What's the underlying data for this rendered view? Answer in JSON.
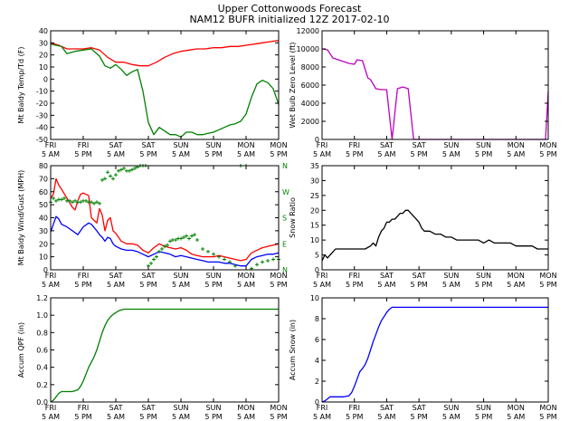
{
  "figure": {
    "title_line1": "Upper Cottonwoods Forecast",
    "title_line2": "NAM12 BUFR initialized 12Z 2017-02-10"
  },
  "chart_data": [
    {
      "id": "temp",
      "type": "line",
      "title": "",
      "ylabel": "Mt Baldy Temp/Td (F)",
      "xlim": [
        0,
        84
      ],
      "ylim": [
        -50,
        40
      ],
      "yticks": [
        -50,
        -40,
        -30,
        -20,
        -10,
        0,
        10,
        20,
        30,
        40
      ],
      "xtick_labels": [
        "FRI 5 AM",
        "FRI 5 PM",
        "SAT 5 AM",
        "SAT 5 PM",
        "SUN 5 AM",
        "SUN 5 PM",
        "MON 5 AM",
        "MON 5 PM"
      ],
      "series": [
        {
          "name": "Temp",
          "color": "#ff0000",
          "x": [
            0,
            3,
            6,
            9,
            12,
            15,
            18,
            21,
            24,
            27,
            30,
            33,
            36,
            39,
            42,
            45,
            48,
            51,
            54,
            57,
            60,
            63,
            66,
            69,
            72,
            75,
            78,
            81,
            84
          ],
          "y": [
            30,
            28,
            25,
            25,
            25,
            26,
            24,
            18,
            14,
            14,
            12,
            11,
            11,
            14,
            18,
            21,
            23,
            24,
            25,
            25,
            26,
            26,
            27,
            27,
            28,
            29,
            30,
            31,
            32
          ]
        },
        {
          "name": "Dewpoint",
          "color": "#008000",
          "x": [
            0,
            2,
            4,
            6,
            9,
            12,
            15,
            18,
            20,
            22,
            24,
            26,
            28,
            30,
            32,
            34,
            36,
            38,
            40,
            42,
            44,
            46,
            48,
            50,
            52,
            54,
            56,
            58,
            60,
            62,
            64,
            66,
            68,
            70,
            72,
            74,
            76,
            78,
            80,
            82,
            84
          ],
          "y": [
            29,
            28,
            27,
            21,
            23,
            24,
            25,
            19,
            11,
            9,
            12,
            8,
            3,
            6,
            8,
            -10,
            -36,
            -46,
            -40,
            -43,
            -46,
            -46,
            -48,
            -44,
            -44,
            -46,
            -46,
            -45,
            -44,
            -42,
            -40,
            -38,
            -37,
            -35,
            -29,
            -15,
            -4,
            -1,
            -3,
            -8,
            -21
          ]
        }
      ]
    },
    {
      "id": "wetbulb",
      "type": "line",
      "title": "",
      "ylabel": "Wet Bulb Zero Level (ft)",
      "xlim": [
        0,
        84
      ],
      "ylim": [
        0,
        12000
      ],
      "yticks": [
        0,
        2000,
        4000,
        6000,
        8000,
        10000,
        12000
      ],
      "xtick_labels": [
        "FRI 5 AM",
        "FRI 5 PM",
        "SAT 5 AM",
        "SAT 5 PM",
        "SUN 5 AM",
        "SUN 5 PM",
        "MON 5 AM",
        "MON 5 PM"
      ],
      "series": [
        {
          "name": "Wet Bulb Zero",
          "color": "#c000c0",
          "x": [
            0,
            2,
            4,
            6,
            8,
            10,
            12,
            13,
            15,
            17,
            18,
            20,
            22,
            24,
            26,
            28,
            29,
            30,
            32,
            34,
            35,
            36,
            83,
            84
          ],
          "y": [
            10000,
            9900,
            9000,
            8800,
            8600,
            8400,
            8300,
            8800,
            8700,
            6800,
            6600,
            5600,
            5500,
            5500,
            0,
            5600,
            5700,
            5800,
            5600,
            0,
            0,
            0,
            0,
            5300
          ]
        }
      ]
    },
    {
      "id": "wind",
      "type": "line",
      "title": "",
      "ylabel": "Mt Baldy Wind/Gust (MPH)",
      "y2label_ticks": [
        "N",
        "W",
        "S",
        "E",
        "N"
      ],
      "xlim": [
        0,
        84
      ],
      "ylim": [
        0,
        80
      ],
      "yticks": [
        0,
        10,
        20,
        30,
        40,
        50,
        60,
        70,
        80
      ],
      "xtick_labels": [
        "FRI 5 AM",
        "FRI 5 PM",
        "SAT 5 AM",
        "SAT 5 PM",
        "SUN 5 AM",
        "SUN 5 PM",
        "MON 5 AM",
        "MON 5 PM"
      ],
      "series": [
        {
          "name": "Gust",
          "color": "#ff0000",
          "x": [
            0,
            1,
            2,
            3,
            4,
            6,
            8,
            9,
            10,
            11,
            12,
            14,
            15,
            17,
            18,
            19,
            20,
            21,
            22,
            23,
            24,
            26,
            28,
            30,
            32,
            34,
            36,
            38,
            40,
            42,
            44,
            46,
            48,
            50,
            52,
            54,
            56,
            58,
            60,
            62,
            64,
            66,
            68,
            70,
            72,
            74,
            76,
            78,
            80,
            82,
            84
          ],
          "y": [
            55,
            58,
            70,
            65,
            62,
            55,
            48,
            46,
            53,
            58,
            59,
            57,
            40,
            36,
            47,
            42,
            30,
            38,
            40,
            30,
            28,
            22,
            20,
            20,
            19,
            15,
            13,
            17,
            20,
            18,
            17,
            16,
            17,
            15,
            12,
            11,
            10,
            10,
            10,
            11,
            10,
            9,
            8,
            7,
            8,
            13,
            15,
            17,
            18,
            19,
            20
          ]
        },
        {
          "name": "Wind",
          "color": "#0000ff",
          "x": [
            0,
            1,
            2,
            3,
            4,
            6,
            8,
            10,
            12,
            14,
            15,
            17,
            18,
            19,
            20,
            21,
            22,
            23,
            24,
            26,
            28,
            30,
            32,
            34,
            36,
            38,
            40,
            42,
            44,
            46,
            48,
            50,
            52,
            54,
            56,
            58,
            60,
            62,
            64,
            66,
            68,
            70,
            72,
            74,
            76,
            78,
            80,
            82,
            84
          ],
          "y": [
            29,
            35,
            41,
            39,
            35,
            33,
            30,
            27,
            33,
            36,
            35,
            30,
            27,
            25,
            22,
            25,
            24,
            20,
            18,
            16,
            15,
            15,
            14,
            12,
            10,
            12,
            14,
            13,
            12,
            10,
            11,
            10,
            9,
            8,
            7,
            6,
            6,
            6,
            5,
            5,
            4,
            3,
            3,
            8,
            10,
            11,
            12,
            12,
            13
          ]
        },
        {
          "name": "Direction",
          "color": "#008000",
          "style": "marker-plus",
          "x": [
            0,
            1,
            2,
            3,
            4,
            5,
            6,
            7,
            8,
            9,
            10,
            11,
            12,
            13,
            14,
            15,
            16,
            17,
            18,
            19,
            20,
            21,
            22,
            23,
            24,
            25,
            26,
            27,
            28,
            29,
            30,
            31,
            32,
            33,
            34,
            35,
            36,
            37,
            38,
            39,
            40,
            41,
            42,
            43,
            44,
            45,
            46,
            47,
            48,
            49,
            50,
            51,
            52,
            53,
            54,
            56,
            58,
            60,
            62,
            64,
            66,
            68,
            70,
            72,
            74,
            76,
            78,
            80,
            82,
            84
          ],
          "y": [
            52,
            55,
            53,
            54,
            54,
            55,
            53,
            53,
            52,
            53,
            52,
            52,
            53,
            53,
            52,
            52,
            51,
            52,
            51,
            69,
            70,
            75,
            72,
            70,
            73,
            76,
            77,
            78,
            76,
            76,
            77,
            78,
            79,
            80,
            80,
            80,
            3,
            5,
            8,
            10,
            14,
            16,
            18,
            19,
            22,
            23,
            23,
            24,
            24,
            25,
            26,
            24,
            26,
            27,
            23,
            16,
            14,
            12,
            10,
            8,
            6,
            3,
            80,
            80,
            1,
            4,
            6,
            7,
            8,
            8
          ]
        }
      ]
    },
    {
      "id": "snowratio",
      "type": "line",
      "title": "",
      "ylabel": "Snow Ratio",
      "xlim": [
        0,
        84
      ],
      "ylim": [
        0,
        35
      ],
      "yticks": [
        0,
        5,
        10,
        15,
        20,
        25,
        30,
        35
      ],
      "xtick_labels": [
        "FRI 5 AM",
        "FRI 5 PM",
        "SAT 5 AM",
        "SAT 5 PM",
        "SUN 5 AM",
        "SUN 5 PM",
        "MON 5 AM",
        "MON 5 PM"
      ],
      "series": [
        {
          "name": "Snow Ratio",
          "color": "#000000",
          "x": [
            0,
            1,
            2,
            3,
            4,
            5,
            6,
            8,
            10,
            12,
            14,
            16,
            18,
            19,
            20,
            21,
            22,
            23,
            24,
            25,
            26,
            27,
            28,
            29,
            30,
            31,
            32,
            33,
            34,
            35,
            36,
            37,
            38,
            39,
            40,
            42,
            44,
            46,
            48,
            50,
            52,
            54,
            56,
            58,
            60,
            62,
            64,
            66,
            68,
            69,
            70,
            72,
            74,
            76,
            78,
            80,
            82,
            84
          ],
          "y": [
            3,
            5,
            4,
            5,
            6,
            7,
            7,
            7,
            7,
            7,
            7,
            7,
            8,
            9,
            8,
            11,
            13,
            14,
            16,
            16,
            17,
            17,
            18,
            19,
            19,
            20,
            20,
            19,
            18,
            17,
            16,
            14,
            13,
            13,
            13,
            12,
            12,
            11,
            11,
            10,
            10,
            10,
            10,
            10,
            9,
            10,
            9,
            9,
            9,
            9,
            9,
            8,
            8,
            8,
            8,
            7,
            7,
            7
          ]
        }
      ]
    },
    {
      "id": "qpf",
      "type": "line",
      "title": "",
      "ylabel": "Accum QPF (in)",
      "xlim": [
        0,
        84
      ],
      "ylim": [
        0,
        1.2
      ],
      "yticks": [
        0.0,
        0.2,
        0.4,
        0.6,
        0.8,
        1.0,
        1.2
      ],
      "xtick_labels": [
        "FRI 5 AM",
        "FRI 5 PM",
        "SAT 5 AM",
        "SAT 5 PM",
        "SUN 5 AM",
        "SUN 5 PM",
        "MON 5 AM",
        "MON 5 PM"
      ],
      "series": [
        {
          "name": "Accum QPF",
          "color": "#008000",
          "x": [
            0,
            1,
            2,
            3,
            4,
            5,
            6,
            8,
            10,
            11,
            12,
            13,
            14,
            15,
            16,
            17,
            18,
            19,
            20,
            21,
            22,
            23,
            24,
            25,
            26,
            27,
            28,
            84
          ],
          "y": [
            0.0,
            0.02,
            0.06,
            0.1,
            0.12,
            0.12,
            0.12,
            0.12,
            0.14,
            0.18,
            0.24,
            0.32,
            0.4,
            0.46,
            0.52,
            0.6,
            0.7,
            0.8,
            0.88,
            0.94,
            0.98,
            1.01,
            1.03,
            1.05,
            1.06,
            1.07,
            1.07,
            1.07
          ]
        }
      ]
    },
    {
      "id": "snow",
      "type": "line",
      "title": "",
      "ylabel": "Accum Snow (in)",
      "xlim": [
        0,
        84
      ],
      "ylim": [
        0,
        10
      ],
      "yticks": [
        0,
        2,
        4,
        6,
        8,
        10
      ],
      "xtick_labels": [
        "FRI 5 AM",
        "FRI 5 PM",
        "SAT 5 AM",
        "SAT 5 PM",
        "SUN 5 AM",
        "SUN 5 PM",
        "MON 5 AM",
        "MON 5 PM"
      ],
      "series": [
        {
          "name": "Accum Snow",
          "color": "#0000ff",
          "x": [
            0,
            1,
            2,
            3,
            4,
            5,
            6,
            8,
            10,
            11,
            12,
            13,
            14,
            15,
            16,
            17,
            18,
            19,
            20,
            21,
            22,
            23,
            24,
            25,
            26,
            27,
            28,
            84
          ],
          "y": [
            0.0,
            0.1,
            0.3,
            0.5,
            0.5,
            0.5,
            0.5,
            0.5,
            0.6,
            0.9,
            1.5,
            2.2,
            2.9,
            3.2,
            3.6,
            4.2,
            5.0,
            5.8,
            6.5,
            7.2,
            7.8,
            8.2,
            8.6,
            8.9,
            9.1,
            9.1,
            9.1,
            9.1
          ]
        }
      ]
    }
  ]
}
